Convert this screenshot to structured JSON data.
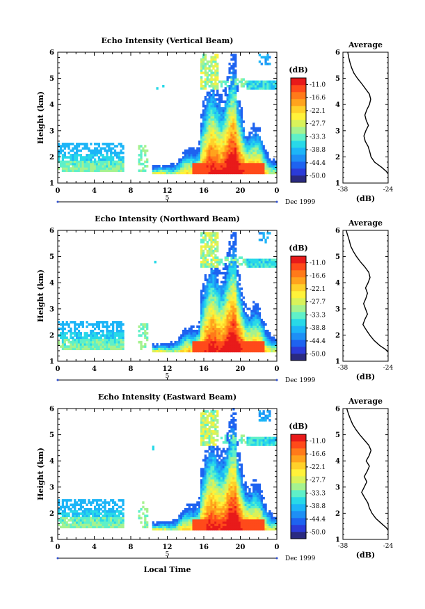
{
  "figure": {
    "x_axis_label": "Local Time",
    "date_label": "Dec 1999",
    "day_marker": "5",
    "colorbar_unit": "(dB)",
    "colorbar_ticks": [
      "-11.0",
      "-16.6",
      "-22.1",
      "-27.7",
      "-33.3",
      "-38.8",
      "-44.4",
      "-50.0"
    ],
    "avg_title": "Average",
    "avg_xlabel": "(dB)",
    "colors": [
      "#2a2a80",
      "#2b3bd8",
      "#1e63f0",
      "#1e8ff5",
      "#1db5f7",
      "#28d9e8",
      "#5ff0c8",
      "#a5f28f",
      "#d9f25a",
      "#fff23a",
      "#ffd12a",
      "#ffa31d",
      "#ff7a1a",
      "#ff4a1a",
      "#e81a1a"
    ]
  },
  "chart_data": [
    {
      "type": "heatmap",
      "title": "Echo Intensity (Vertical Beam)",
      "ylabel": "Height (km)",
      "xlabel": "",
      "xlim": [
        0,
        24
      ],
      "ylim": [
        1,
        6
      ],
      "xticks": [
        "0",
        "4",
        "8",
        "12",
        "16",
        "20",
        "0"
      ],
      "yticks": [
        "1",
        "2",
        "3",
        "4",
        "5",
        "6"
      ],
      "cmap_range_db": [
        -50.0,
        -11.0
      ],
      "approx_echo_regions": [
        {
          "x": [
            0,
            7.2
          ],
          "y": [
            1.4,
            2.5
          ]
        },
        {
          "x": [
            8.6,
            9.6
          ],
          "y": [
            1.4,
            2.5
          ]
        },
        {
          "x": [
            10.2,
            23.8
          ],
          "y": [
            1.4,
            5.9
          ]
        }
      ],
      "average_profile": {
        "xlabel": "(dB)",
        "xticks": [
          "-38",
          "-24"
        ],
        "xlim": [
          -38,
          -24
        ],
        "ylim": [
          1,
          6
        ],
        "x": [
          -36.5,
          -36.2,
          -35.8,
          -35.3,
          -34.6,
          -33.5,
          -32.2,
          -31.0,
          -29.8,
          -29.4,
          -29.8,
          -30.6,
          -31.2,
          -30.8,
          -30.1,
          -30.9,
          -31.5,
          -31.1,
          -30.2,
          -29.7,
          -29.3,
          -28.2,
          -26.0,
          -24.6,
          -24.0
        ],
        "y": [
          6.0,
          5.8,
          5.6,
          5.4,
          5.2,
          5.0,
          4.8,
          4.6,
          4.4,
          4.2,
          4.0,
          3.8,
          3.6,
          3.4,
          3.2,
          3.0,
          2.8,
          2.6,
          2.4,
          2.2,
          2.0,
          1.8,
          1.6,
          1.45,
          1.35
        ]
      }
    },
    {
      "type": "heatmap",
      "title": "Echo Intensity (Northward Beam)",
      "ylabel": "Height (km)",
      "xlabel": "",
      "xlim": [
        0,
        24
      ],
      "ylim": [
        1,
        6
      ],
      "xticks": [
        "0",
        "4",
        "8",
        "12",
        "16",
        "20",
        "0"
      ],
      "yticks": [
        "1",
        "2",
        "3",
        "4",
        "5",
        "6"
      ],
      "cmap_range_db": [
        -50.0,
        -11.0
      ],
      "approx_echo_regions": [
        {
          "x": [
            0,
            7.2
          ],
          "y": [
            1.4,
            2.5
          ]
        },
        {
          "x": [
            8.8,
            9.8
          ],
          "y": [
            1.4,
            2.5
          ]
        },
        {
          "x": [
            10.2,
            23.8
          ],
          "y": [
            1.4,
            5.8
          ]
        }
      ],
      "average_profile": {
        "xlabel": "(dB)",
        "xticks": [
          "-38",
          "-24"
        ],
        "xlim": [
          -38,
          -24
        ],
        "ylim": [
          1,
          6
        ],
        "x": [
          -37.0,
          -36.5,
          -36.0,
          -35.6,
          -34.8,
          -33.8,
          -32.6,
          -31.2,
          -30.0,
          -29.6,
          -30.2,
          -31.0,
          -30.4,
          -30.9,
          -31.6,
          -31.0,
          -30.4,
          -31.2,
          -31.8,
          -30.8,
          -29.7,
          -28.4,
          -26.6,
          -24.8,
          -24.0
        ],
        "y": [
          6.0,
          5.8,
          5.6,
          5.4,
          5.2,
          5.0,
          4.8,
          4.6,
          4.4,
          4.2,
          4.0,
          3.8,
          3.6,
          3.4,
          3.2,
          3.0,
          2.8,
          2.6,
          2.4,
          2.2,
          2.0,
          1.8,
          1.6,
          1.45,
          1.35
        ]
      }
    },
    {
      "type": "heatmap",
      "title": "Echo Intensity (Eastward Beam)",
      "ylabel": "Height (km)",
      "xlabel": "Local Time",
      "xlim": [
        0,
        24
      ],
      "ylim": [
        1,
        6
      ],
      "xticks": [
        "0",
        "4",
        "8",
        "12",
        "16",
        "20",
        "0"
      ],
      "yticks": [
        "1",
        "2",
        "3",
        "4",
        "5",
        "6"
      ],
      "cmap_range_db": [
        -50.0,
        -11.0
      ],
      "approx_echo_regions": [
        {
          "x": [
            0,
            7.2
          ],
          "y": [
            1.4,
            2.5
          ]
        },
        {
          "x": [
            8.6,
            9.6
          ],
          "y": [
            1.4,
            2.5
          ]
        },
        {
          "x": [
            10.2,
            23.8
          ],
          "y": [
            1.4,
            5.8
          ]
        }
      ],
      "average_profile": {
        "xlabel": "(dB)",
        "xticks": [
          "-38",
          "-24"
        ],
        "xlim": [
          -38,
          -24
        ],
        "ylim": [
          1,
          6
        ],
        "x": [
          -36.8,
          -36.3,
          -35.7,
          -35.0,
          -34.0,
          -32.8,
          -31.4,
          -30.0,
          -29.3,
          -29.9,
          -30.8,
          -29.8,
          -30.5,
          -31.4,
          -30.6,
          -31.4,
          -32.2,
          -31.3,
          -30.3,
          -29.8,
          -29.0,
          -27.8,
          -26.0,
          -24.6,
          -24.0
        ],
        "y": [
          6.0,
          5.8,
          5.6,
          5.4,
          5.2,
          5.0,
          4.8,
          4.6,
          4.4,
          4.2,
          4.0,
          3.8,
          3.6,
          3.4,
          3.2,
          3.0,
          2.8,
          2.6,
          2.4,
          2.2,
          2.0,
          1.8,
          1.6,
          1.45,
          1.35
        ]
      }
    }
  ]
}
